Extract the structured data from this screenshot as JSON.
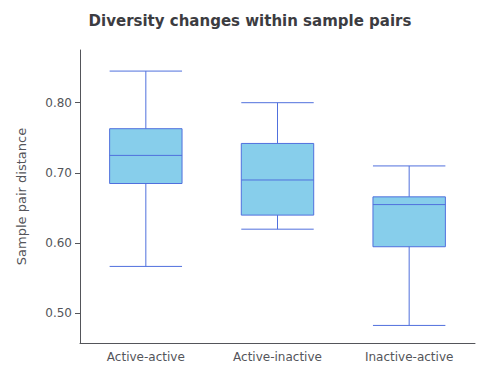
{
  "chart_data": {
    "type": "boxplot",
    "title": "Diversity changes within sample pairs",
    "ylabel": "Sample pair distance",
    "categories": [
      "Active-active",
      "Active-inactive",
      "Inactive-active"
    ],
    "values": [
      [
        0.567,
        0.685,
        0.725,
        0.763,
        0.845
      ],
      [
        0.62,
        0.64,
        0.69,
        0.742,
        0.8
      ],
      [
        0.483,
        0.595,
        0.655,
        0.666,
        0.71
      ]
    ],
    "color": "#87CEEB",
    "ylim": [
      0.458,
      0.875
    ],
    "yticks": [
      {
        "value": 0.5,
        "label": "0.50"
      },
      {
        "value": 0.6,
        "label": "0.60"
      },
      {
        "value": 0.7,
        "label": "0.70"
      },
      {
        "value": 0.8,
        "label": "0.80"
      }
    ],
    "grid": false
  }
}
